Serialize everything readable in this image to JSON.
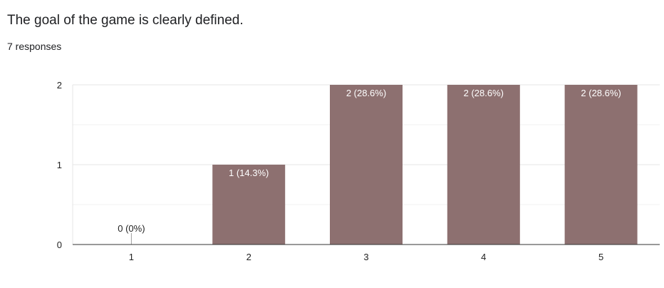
{
  "question": {
    "title": "The goal of the game is clearly defined.",
    "responses": "7 responses"
  },
  "chart_data": {
    "type": "bar",
    "categories": [
      "1",
      "2",
      "3",
      "4",
      "5"
    ],
    "values": [
      0,
      1,
      2,
      2,
      2
    ],
    "data_labels": [
      "0 (0%)",
      "1 (14.3%)",
      "2 (28.6%)",
      "2 (28.6%)",
      "2 (28.6%)"
    ],
    "title": "",
    "xlabel": "",
    "ylabel": "",
    "ylim": [
      0,
      2
    ],
    "yticks": [
      0,
      1,
      2
    ],
    "grid": true,
    "legend": "none",
    "colors": {
      "bar": "#8d7070",
      "label_inside": "#ffffff",
      "label_outside": "#222222",
      "grid": "#e8e8e8"
    }
  }
}
